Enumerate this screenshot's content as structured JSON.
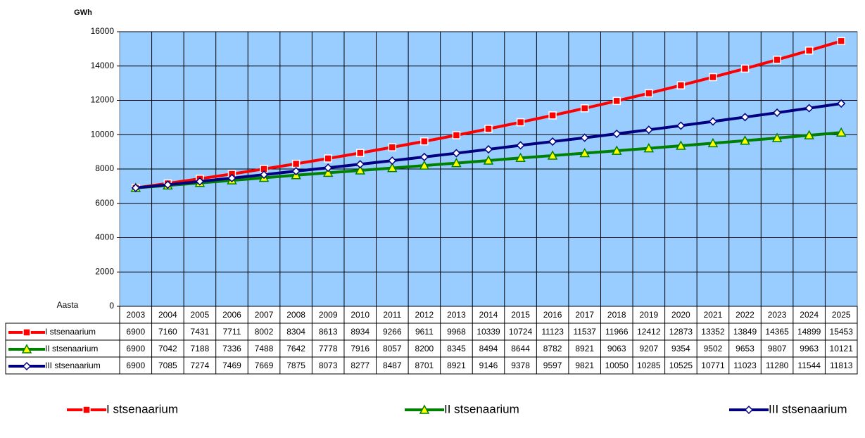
{
  "chart_data": {
    "type": "line",
    "y_label": "GWh",
    "x_label": "Aasta",
    "categories": [
      "2003",
      "2004",
      "2005",
      "2006",
      "2007",
      "2008",
      "2009",
      "2010",
      "2011",
      "2012",
      "2013",
      "2014",
      "2015",
      "2016",
      "2017",
      "2018",
      "2019",
      "2020",
      "2021",
      "2022",
      "2023",
      "2024",
      "2025"
    ],
    "series": [
      {
        "name": "I stsenaarium",
        "color": "#ff0000",
        "marker": "square",
        "marker_fill": "#ff0000",
        "values": [
          6900,
          7160,
          7431,
          7711,
          8002,
          8304,
          8613,
          8934,
          9266,
          9611,
          9968,
          10339,
          10724,
          11123,
          11537,
          11966,
          12412,
          12873,
          13352,
          13849,
          14365,
          14899,
          15453
        ]
      },
      {
        "name": "II stsenaarium",
        "color": "#008000",
        "marker": "triangle",
        "marker_fill": "#ffff00",
        "values": [
          6900,
          7042,
          7188,
          7336,
          7488,
          7642,
          7778,
          7916,
          8057,
          8200,
          8345,
          8494,
          8644,
          8782,
          8921,
          9063,
          9207,
          9354,
          9502,
          9653,
          9807,
          9963,
          10121
        ]
      },
      {
        "name": "III stsenaarium",
        "color": "#000080",
        "marker": "diamond",
        "marker_fill": "#ffffff",
        "values": [
          6900,
          7085,
          7274,
          7469,
          7669,
          7875,
          8073,
          8277,
          8487,
          8701,
          8921,
          9146,
          9378,
          9597,
          9821,
          10050,
          10285,
          10525,
          10771,
          11023,
          11280,
          11544,
          11813
        ]
      }
    ],
    "ylim": [
      0,
      16000
    ],
    "yticks": [
      0,
      2000,
      4000,
      6000,
      8000,
      10000,
      12000,
      14000,
      16000
    ],
    "grid": true,
    "plot_background": "#99ccff",
    "legend": "bottom"
  }
}
